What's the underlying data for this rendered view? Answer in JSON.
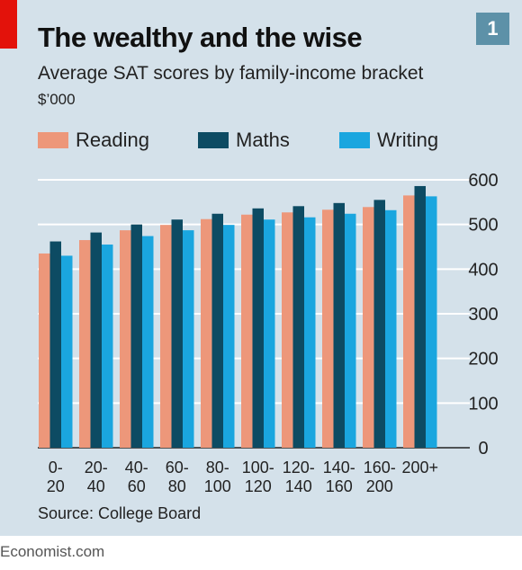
{
  "header": {
    "title": "The wealthy and the wise",
    "subtitle": "Average SAT scores by family-income bracket",
    "unit": "$’000",
    "chart_number": "1"
  },
  "footer": {
    "source": "Source: College Board",
    "publisher": "Economist.com"
  },
  "colors": {
    "panel": "#d4e1ea",
    "reading": "#ed977a",
    "maths": "#0d4b63",
    "writing": "#1aa6df",
    "red_tab": "#e3120b",
    "badge": "#5d91a8"
  },
  "chart_data": {
    "type": "bar",
    "categories": [
      "0-20",
      "20-40",
      "40-60",
      "60-80",
      "80-100",
      "100-120",
      "120-140",
      "140-160",
      "160-200",
      "200+"
    ],
    "category_lines": [
      [
        "0-",
        "20"
      ],
      [
        "20-",
        "40"
      ],
      [
        "40-",
        "60"
      ],
      [
        "60-",
        "80"
      ],
      [
        "80-",
        "100"
      ],
      [
        "100-",
        "120"
      ],
      [
        "120-",
        "140"
      ],
      [
        "140-",
        "160"
      ],
      [
        "160-",
        "200"
      ],
      [
        "200+",
        ""
      ]
    ],
    "series": [
      {
        "name": "Reading",
        "values": [
          435,
          465,
          487,
          499,
          512,
          522,
          527,
          533,
          539,
          565
        ]
      },
      {
        "name": "Maths",
        "values": [
          462,
          482,
          500,
          511,
          524,
          536,
          541,
          548,
          555,
          586
        ]
      },
      {
        "name": "Writing",
        "values": [
          430,
          455,
          474,
          487,
          499,
          511,
          516,
          524,
          532,
          563
        ]
      }
    ],
    "ylim": [
      0,
      600
    ],
    "yticks": [
      0,
      100,
      200,
      300,
      400,
      500,
      600
    ],
    "ytick_labels": [
      "0",
      "100",
      "200",
      "300",
      "400",
      "500",
      "600"
    ],
    "y_axis_position": "right",
    "grid": true,
    "legend": "top"
  }
}
